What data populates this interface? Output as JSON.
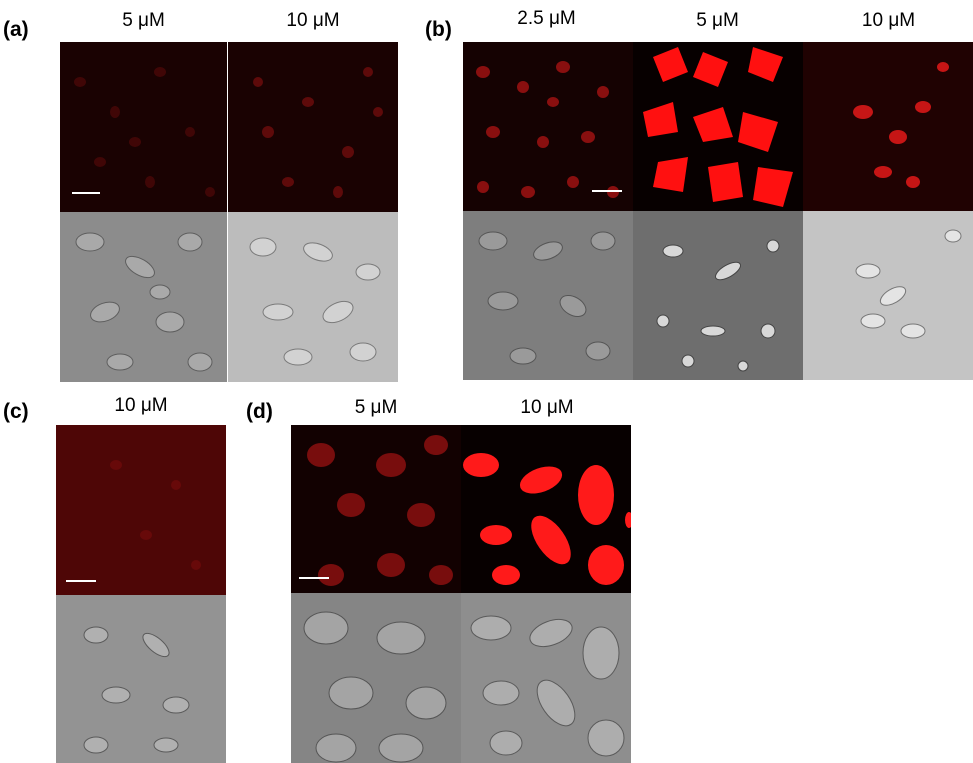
{
  "panels": {
    "a": {
      "label": "(a)",
      "conc": [
        "5 μM",
        "10 μM"
      ]
    },
    "b": {
      "label": "(b)",
      "conc": [
        "2.5 μM",
        "5 μM",
        "10 μM"
      ]
    },
    "c": {
      "label": "(c)",
      "conc": [
        "10 μM"
      ]
    },
    "d": {
      "label": "(d)",
      "conc": [
        "5 μM",
        "10 μM"
      ]
    }
  },
  "colors": {
    "fluorescence": "#ff0000",
    "dim_fluorescence": "#5a0a0a",
    "dic_gray": "#8c8c8c",
    "scale_bar": "#ffffff"
  }
}
